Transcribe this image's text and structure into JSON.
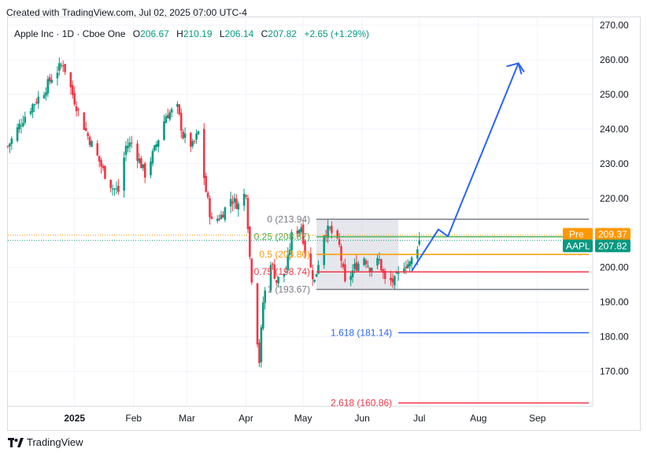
{
  "header": {
    "created_text": "Created with TradingView.com, Jul 02, 2025 07:00 UTC-4"
  },
  "legend": {
    "symbol": "Apple Inc · 1D · Cboe One",
    "o_label": "O",
    "o_value": "206.67",
    "h_label": "H",
    "h_value": "210.19",
    "l_label": "L",
    "l_value": "206.14",
    "c_label": "C",
    "c_value": "207.82",
    "change": "+2.65 (+1.29%)"
  },
  "footer": {
    "brand": "TradingView"
  },
  "colors": {
    "up": "#089981",
    "down": "#f23645",
    "grid": "#f0f3fa",
    "fib_0": "#787b86",
    "fib_025": "#4caf50",
    "fib_05": "#ff9800",
    "fib_075": "#f23645",
    "fib_1": "#787b86",
    "fib_1618": "#2962ff",
    "fib_2618": "#f23645",
    "projection": "#2962ff",
    "pre_badge": "#ff9800",
    "price_badge": "#089981"
  },
  "chart_data": {
    "type": "candlestick",
    "title": "Apple Inc · 1D · Cboe One",
    "ylim": [
      160,
      272
    ],
    "y_ticks": [
      "270.00",
      "260.00",
      "250.00",
      "240.00",
      "230.00",
      "220.00",
      "200.00",
      "190.00",
      "180.00",
      "170.00"
    ],
    "x_ticks": [
      {
        "label": "2025",
        "date": "2025-01-01",
        "bold": true
      },
      {
        "label": "Feb",
        "date": "2025-02-01"
      },
      {
        "label": "Mar",
        "date": "2025-03-01"
      },
      {
        "label": "Apr",
        "date": "2025-04-01"
      },
      {
        "label": "May",
        "date": "2025-05-01"
      },
      {
        "label": "Jun",
        "date": "2025-06-01"
      },
      {
        "label": "Jul",
        "date": "2025-07-01"
      },
      {
        "label": "Aug",
        "date": "2025-08-01"
      },
      {
        "label": "Sep",
        "date": "2025-09-01"
      }
    ],
    "x_range": [
      "2024-11-27",
      "2025-09-30"
    ],
    "close_path": [
      [
        "2024-11-27",
        235
      ],
      [
        "2024-12-02",
        240
      ],
      [
        "2024-12-05",
        243
      ],
      [
        "2024-12-10",
        247
      ],
      [
        "2024-12-16",
        251
      ],
      [
        "2024-12-20",
        255
      ],
      [
        "2024-12-26",
        259
      ],
      [
        "2024-12-31",
        250
      ],
      [
        "2025-01-03",
        245
      ],
      [
        "2025-01-08",
        238
      ],
      [
        "2025-01-13",
        232
      ],
      [
        "2025-01-16",
        228
      ],
      [
        "2025-01-21",
        223
      ],
      [
        "2025-01-24",
        222
      ],
      [
        "2025-01-28",
        235
      ],
      [
        "2025-01-31",
        236
      ],
      [
        "2025-02-04",
        231
      ],
      [
        "2025-02-07",
        227
      ],
      [
        "2025-02-12",
        234
      ],
      [
        "2025-02-18",
        244
      ],
      [
        "2025-02-24",
        246
      ],
      [
        "2025-02-27",
        238
      ],
      [
        "2025-03-04",
        235
      ],
      [
        "2025-03-07",
        239
      ],
      [
        "2025-03-11",
        222
      ],
      [
        "2025-03-14",
        213
      ],
      [
        "2025-03-19",
        215
      ],
      [
        "2025-03-24",
        220
      ],
      [
        "2025-03-28",
        218
      ],
      [
        "2025-04-01",
        222
      ],
      [
        "2025-04-03",
        203
      ],
      [
        "2025-04-08",
        173
      ],
      [
        "2025-04-10",
        190
      ],
      [
        "2025-04-14",
        202
      ],
      [
        "2025-04-17",
        196
      ],
      [
        "2025-04-22",
        199
      ],
      [
        "2025-04-25",
        209
      ],
      [
        "2025-04-30",
        212
      ],
      [
        "2025-05-02",
        205
      ],
      [
        "2025-05-07",
        196
      ],
      [
        "2025-05-12",
        210
      ],
      [
        "2025-05-15",
        211
      ],
      [
        "2025-05-20",
        206
      ],
      [
        "2025-05-23",
        195
      ],
      [
        "2025-05-28",
        200
      ],
      [
        "2025-06-02",
        203
      ],
      [
        "2025-06-05",
        200
      ],
      [
        "2025-06-10",
        202
      ],
      [
        "2025-06-13",
        196
      ],
      [
        "2025-06-18",
        196
      ],
      [
        "2025-06-23",
        201
      ],
      [
        "2025-06-26",
        201
      ],
      [
        "2025-07-01",
        207.82
      ]
    ],
    "last_price": {
      "label": "AAPL",
      "value": "207.82"
    },
    "pre_price": {
      "label": "Pre",
      "value": "209.37"
    },
    "fib_levels": [
      {
        "ratio": "0",
        "price": 213.94,
        "label": "0 (213.94)",
        "key": "fib_0"
      },
      {
        "ratio": "0.25",
        "price": 208.87,
        "label": "0.25 (208.87)",
        "key": "fib_025"
      },
      {
        "ratio": "0.5",
        "price": 203.8,
        "label": "0.5 (203.80)",
        "key": "fib_05"
      },
      {
        "ratio": "0.75",
        "price": 198.74,
        "label": "0.75 (198.74)",
        "key": "fib_075"
      },
      {
        "ratio": "1",
        "price": 193.67,
        "label": "1 (193.67)",
        "key": "fib_1"
      },
      {
        "ratio": "1.618",
        "price": 181.14,
        "label": "1.618 (181.14)",
        "key": "fib_1618"
      },
      {
        "ratio": "2.618",
        "price": 160.86,
        "label": "2.618 (160.86)",
        "key": "fib_2618"
      }
    ],
    "fib_range": [
      "2025-05-08",
      "2025-06-20"
    ],
    "fib_extension_end": "2025-09-28",
    "projection_path": [
      [
        "2025-06-27",
        199
      ],
      [
        "2025-07-11",
        211
      ],
      [
        "2025-07-16",
        209
      ],
      [
        "2025-08-22",
        259
      ],
      [
        "2025-08-25",
        256.5
      ]
    ]
  }
}
